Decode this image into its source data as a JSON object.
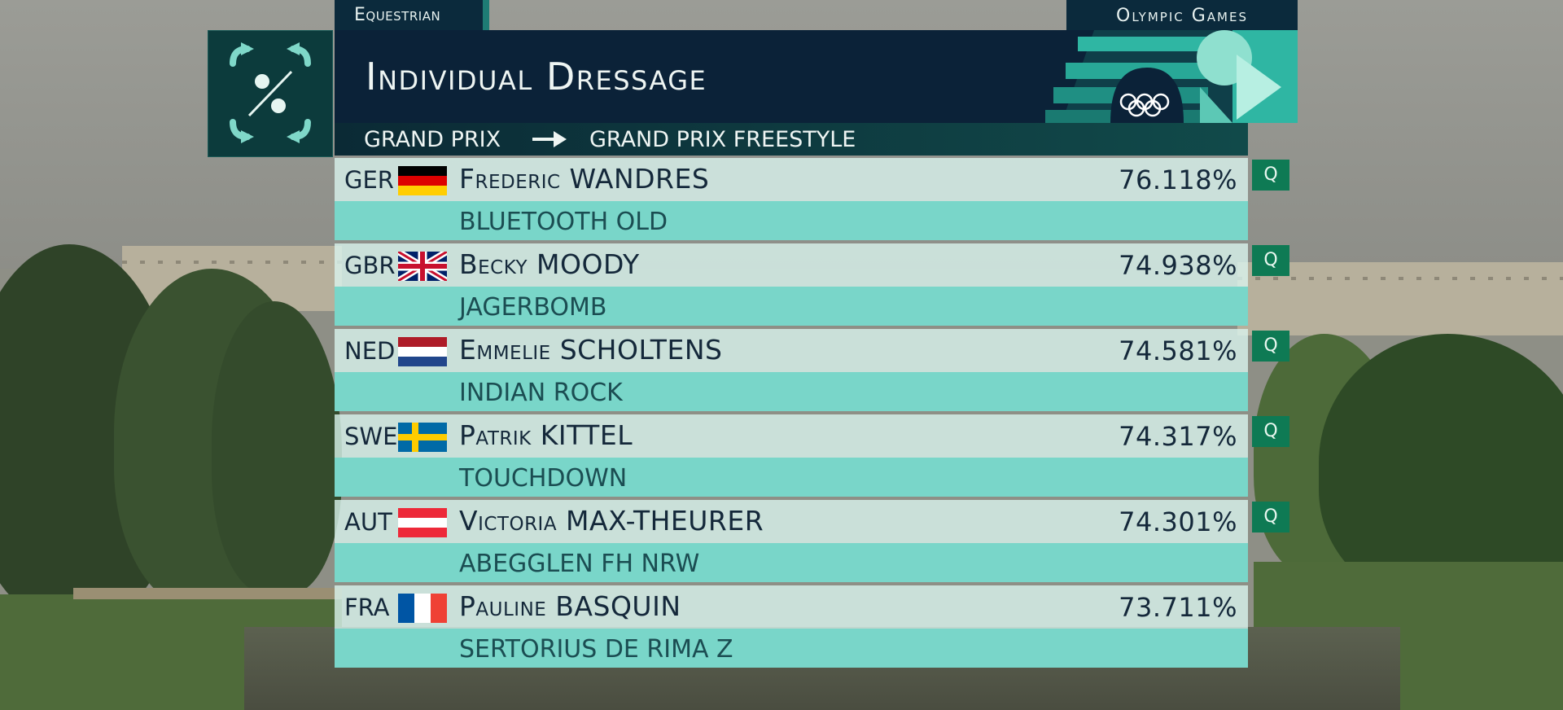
{
  "sport_tag": "Equestrian",
  "games_tag": "Olympic Games",
  "title": "Individual Dressage",
  "subtitle": {
    "from": "GRAND PRIX",
    "to": "GRAND PRIX FREESTYLE"
  },
  "icons": {
    "sport_pictogram": "equestrian-dressage-icon",
    "arrow": "right-arrow-icon",
    "olympic_rings": "olympic-rings-icon"
  },
  "colors": {
    "navy": "#0b2238",
    "teal_light": "#79d6c9",
    "qualified_green": "#0e7a54",
    "row_light": "#daf4ee"
  },
  "results": [
    {
      "noc": "GER",
      "flag": "germany-flag",
      "rider": "Frederic WANDRES",
      "horse": "BLUETOOTH OLD",
      "score": "76.118%",
      "qualified": "Q"
    },
    {
      "noc": "GBR",
      "flag": "uk-flag",
      "rider": "Becky MOODY",
      "horse": "JAGERBOMB",
      "score": "74.938%",
      "qualified": "Q"
    },
    {
      "noc": "NED",
      "flag": "netherlands-flag",
      "rider": "Emmelie SCHOLTENS",
      "horse": "INDIAN ROCK",
      "score": "74.581%",
      "qualified": "Q"
    },
    {
      "noc": "SWE",
      "flag": "sweden-flag",
      "rider": "Patrik KITTEL",
      "horse": "TOUCHDOWN",
      "score": "74.317%",
      "qualified": "Q"
    },
    {
      "noc": "AUT",
      "flag": "austria-flag",
      "rider": "Victoria MAX-THEURER",
      "horse": "ABEGGLEN FH NRW",
      "score": "74.301%",
      "qualified": "Q"
    },
    {
      "noc": "FRA",
      "flag": "france-flag",
      "rider": "Pauline BASQUIN",
      "horse": "SERTORIUS DE RIMA Z",
      "score": "73.711%",
      "qualified": ""
    }
  ]
}
